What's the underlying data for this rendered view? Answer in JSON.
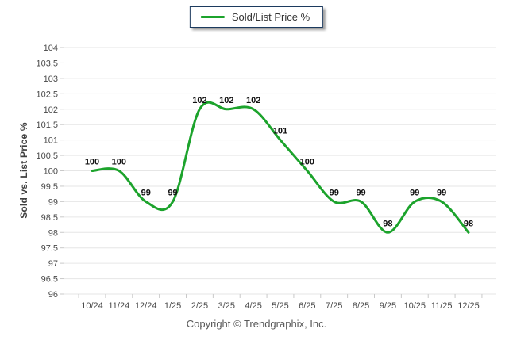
{
  "legend": {
    "label": "Sold/List Price %"
  },
  "footer": {
    "text": "Copyright © Trendgraphix, Inc."
  },
  "chart_data": {
    "type": "line",
    "title": "",
    "xlabel": "",
    "ylabel": "Sold vs. List Price %",
    "categories": [
      "10/24",
      "11/24",
      "12/24",
      "1/25",
      "2/25",
      "3/25",
      "4/25",
      "5/25",
      "6/25",
      "7/25",
      "8/25",
      "9/25",
      "10/25",
      "11/25",
      "12/25"
    ],
    "series": [
      {
        "name": "Sold/List Price %",
        "color": "#1CA32C",
        "values": [
          100,
          100,
          99,
          99,
          102,
          102,
          102,
          101,
          100,
          99,
          99,
          98,
          99,
          99,
          98
        ]
      }
    ],
    "point_labels": [
      "100",
      "100",
      "99",
      "99",
      "102",
      "102",
      "102",
      "101",
      "100",
      "99",
      "99",
      "98",
      "99",
      "99",
      "98"
    ],
    "ylim": [
      96,
      104
    ],
    "ytick_step": 0.5,
    "ytick_labels": [
      "96",
      "96.5",
      "97",
      "97.5",
      "98",
      "98.5",
      "99",
      "99.5",
      "100",
      "100.5",
      "101",
      "101.5",
      "102",
      "102.5",
      "103",
      "103.5",
      "104"
    ],
    "grid": "horizontal",
    "legend_position": "top-center",
    "line_smoothing": "spline",
    "colors": {
      "line": "#1CA32C",
      "grid": "#e6e6e6",
      "axis": "#c9c9c9",
      "tick_label": "#4a4a4a",
      "data_label": "#111111"
    }
  }
}
